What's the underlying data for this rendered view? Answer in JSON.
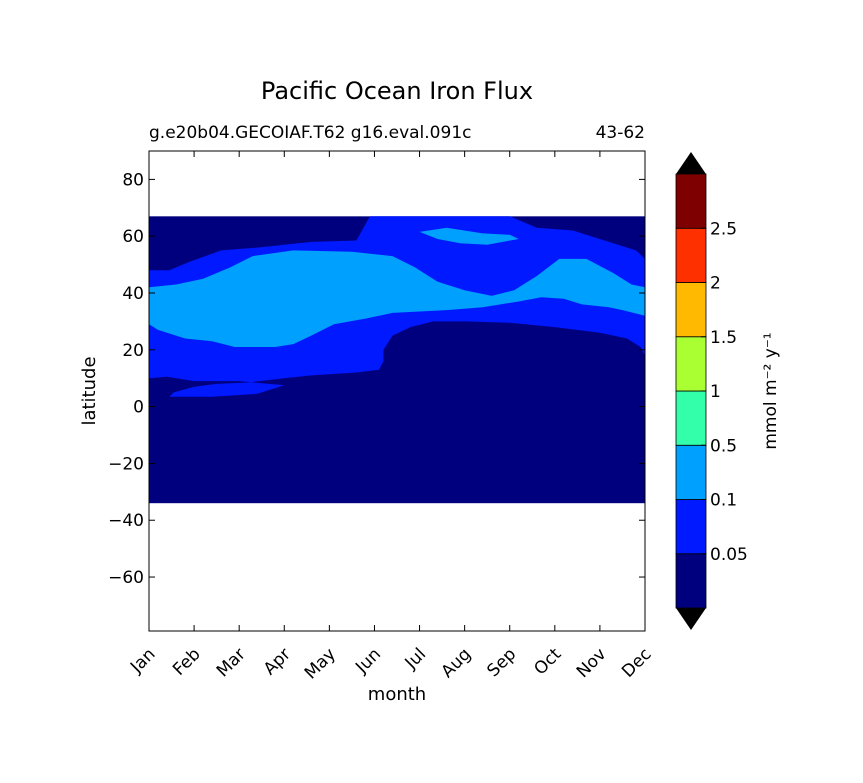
{
  "chart_data": {
    "type": "heatmap",
    "title": "Pacific Ocean Iron Flux",
    "subtitle_left": "g.e20b04.GECOIAF.T62 g16.eval.091c",
    "subtitle_right": "43-62",
    "xlabel": "month",
    "ylabel": "latitude",
    "x_ticks": [
      "Jan",
      "Feb",
      "Mar",
      "Apr",
      "May",
      "Jun",
      "Jul",
      "Aug",
      "Sep",
      "Oct",
      "Nov",
      "Dec"
    ],
    "y_ticks": [
      80,
      60,
      40,
      20,
      0,
      -20,
      -40,
      -60
    ],
    "y_tick_labels": [
      "80",
      "60",
      "40",
      "20",
      "0",
      "−20",
      "−40",
      "−60"
    ],
    "xlim": [
      0,
      11
    ],
    "ylim": [
      -79,
      90
    ],
    "data_lat_range": [
      -34,
      67
    ],
    "colorbar": {
      "label": "mmol m⁻² y⁻¹",
      "boundaries": [
        0,
        0.05,
        0.1,
        0.5,
        1,
        1.5,
        2,
        2.5,
        3
      ],
      "tick_labels": [
        "0.05",
        "0.1",
        "0.5",
        "1",
        "1.5",
        "2",
        "2.5"
      ],
      "colors": [
        "#00007f",
        "#0019ff",
        "#00a0ff",
        "#33ffaa",
        "#aaff33",
        "#ffb900",
        "#ff3000",
        "#7f0000"
      ],
      "extend": "both",
      "extend_colors": [
        "#000000",
        "#000000"
      ]
    },
    "contours": [
      {
        "level": 0.05,
        "color": "#0019ff",
        "points": [
          [
            0,
            48
          ],
          [
            0.45,
            48
          ],
          [
            0.9,
            51
          ],
          [
            1.6,
            55
          ],
          [
            2.4,
            56
          ],
          [
            3.6,
            58
          ],
          [
            4.6,
            58.5
          ],
          [
            4.9,
            67
          ],
          [
            8,
            67
          ],
          [
            8.6,
            63
          ],
          [
            9.4,
            62
          ],
          [
            10.2,
            58
          ],
          [
            10.8,
            55
          ],
          [
            11,
            52
          ],
          [
            11,
            18
          ],
          [
            10.9,
            21
          ],
          [
            10.6,
            24
          ],
          [
            10,
            26
          ],
          [
            9,
            28
          ],
          [
            8,
            29.5
          ],
          [
            7,
            30
          ],
          [
            6.3,
            30
          ],
          [
            5.8,
            28
          ],
          [
            5.4,
            25
          ],
          [
            5.2,
            20
          ],
          [
            5.2,
            16
          ],
          [
            5.1,
            13
          ],
          [
            4.6,
            12
          ],
          [
            3.6,
            11
          ],
          [
            3,
            10
          ],
          [
            2.2,
            8.5
          ],
          [
            1.5,
            8
          ],
          [
            1,
            7
          ],
          [
            0.55,
            5
          ],
          [
            0.45,
            3.5
          ],
          [
            1.4,
            3.5
          ],
          [
            2.4,
            4.5
          ],
          [
            3,
            7.5
          ],
          [
            2,
            9
          ],
          [
            1,
            9
          ],
          [
            0.4,
            10.5
          ],
          [
            0,
            10
          ]
        ]
      },
      {
        "level": 0.1,
        "color": "#00a0ff",
        "points": [
          [
            0,
            42
          ],
          [
            0.6,
            43
          ],
          [
            1.2,
            45
          ],
          [
            1.8,
            49
          ],
          [
            2.3,
            53
          ],
          [
            3.2,
            55
          ],
          [
            4.5,
            54.5
          ],
          [
            5.4,
            53
          ],
          [
            5.9,
            49
          ],
          [
            6.4,
            44
          ],
          [
            7,
            41
          ],
          [
            7.6,
            39
          ],
          [
            8.1,
            41
          ],
          [
            8.6,
            46
          ],
          [
            9.1,
            52
          ],
          [
            9.7,
            52
          ],
          [
            10.3,
            47
          ],
          [
            10.7,
            43
          ],
          [
            11,
            42
          ],
          [
            11,
            32
          ],
          [
            10.5,
            34
          ],
          [
            10.2,
            35
          ],
          [
            9.6,
            36
          ],
          [
            9.2,
            38
          ],
          [
            8.7,
            38.5
          ],
          [
            8.2,
            37
          ],
          [
            7.4,
            35
          ],
          [
            6.6,
            34
          ],
          [
            5.4,
            33
          ],
          [
            4.8,
            31
          ],
          [
            4.1,
            29
          ],
          [
            3.6,
            25
          ],
          [
            3.2,
            22
          ],
          [
            2.8,
            21
          ],
          [
            1.9,
            21
          ],
          [
            1.4,
            23
          ],
          [
            0.8,
            24
          ],
          [
            0.2,
            27
          ],
          [
            0,
            29
          ]
        ]
      },
      {
        "level": 0.1,
        "color": "#00a0ff",
        "points": [
          [
            6,
            61.5
          ],
          [
            6.6,
            63
          ],
          [
            7.4,
            61
          ],
          [
            8,
            60.5
          ],
          [
            8.2,
            59
          ],
          [
            7.5,
            57
          ],
          [
            6.9,
            57.5
          ],
          [
            6.4,
            59
          ]
        ]
      }
    ]
  }
}
